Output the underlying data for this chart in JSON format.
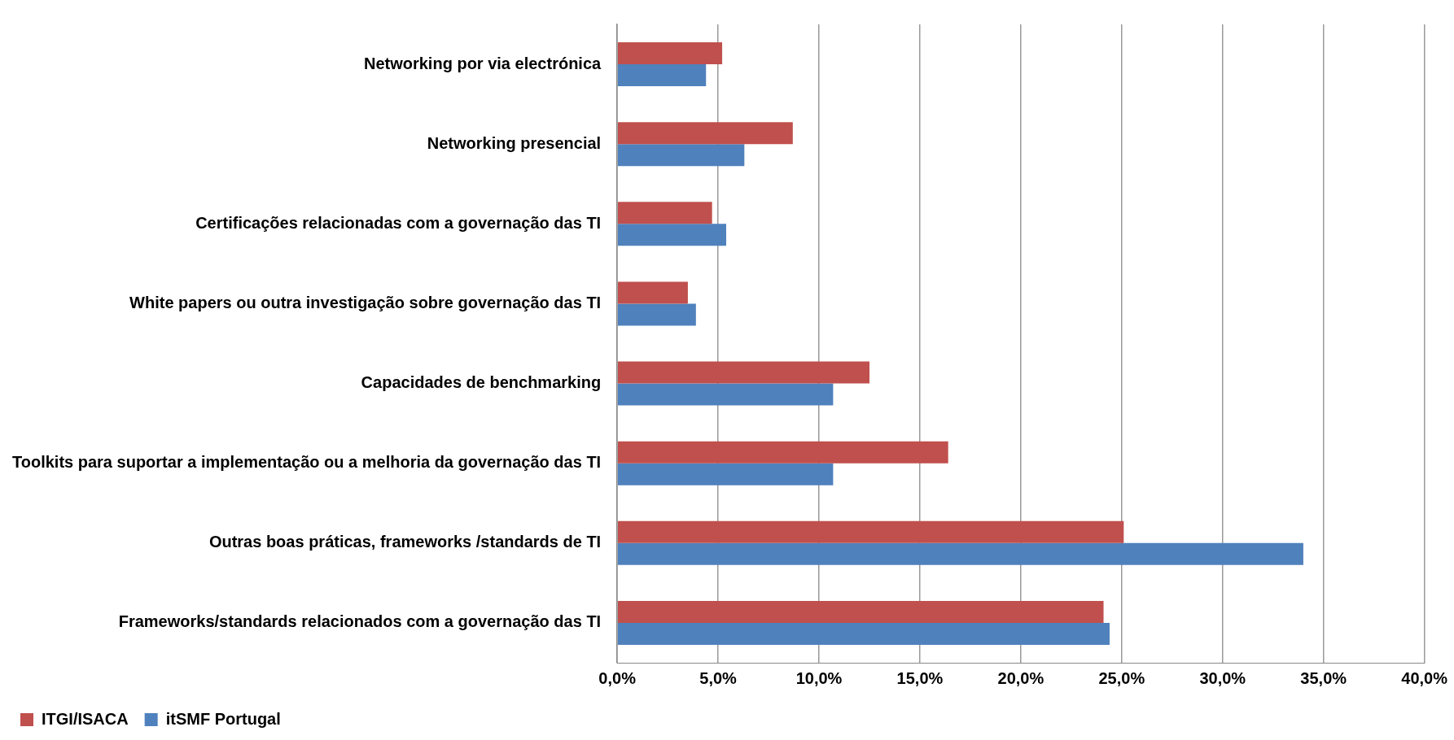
{
  "chart_data": {
    "type": "bar",
    "orientation": "horizontal",
    "categories": [
      "Networking por via electrónica",
      "Networking presencial",
      "Certificações relacionadas com a governação das TI",
      "White papers ou outra investigação sobre governação das TI",
      "Capacidades de benchmarking",
      "Toolkits para suportar a implementação ou a melhoria da governação das TI",
      "Outras boas práticas, frameworks /standards de TI",
      "Frameworks/standards relacionados com a governação das TI"
    ],
    "series": [
      {
        "name": "ITGI/ISACA",
        "color": "#c0504d",
        "values": [
          5.2,
          8.7,
          4.7,
          3.5,
          12.5,
          16.4,
          25.1,
          24.1
        ]
      },
      {
        "name": "itSMF Portugal",
        "color": "#4f81bd",
        "values": [
          4.4,
          6.3,
          5.4,
          3.9,
          10.7,
          10.7,
          34.0,
          24.4
        ]
      }
    ],
    "xlim": [
      0,
      40
    ],
    "xticks": [
      {
        "value": 0,
        "label": "0,0%"
      },
      {
        "value": 5,
        "label": "5,0%"
      },
      {
        "value": 10,
        "label": "10,0%"
      },
      {
        "value": 15,
        "label": "15,0%"
      },
      {
        "value": 20,
        "label": "20,0%"
      },
      {
        "value": 25,
        "label": "25,0%"
      },
      {
        "value": 30,
        "label": "30,0%"
      },
      {
        "value": 35,
        "label": "35,0%"
      },
      {
        "value": 40,
        "label": "40,0%"
      }
    ],
    "grid": "x",
    "legend": "bottom left"
  }
}
